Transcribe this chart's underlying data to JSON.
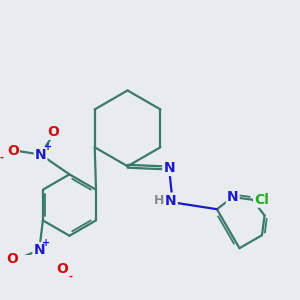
{
  "bg_color": "#e8ecf0",
  "bond_color": "#3a7a6a",
  "bond_lw": 1.6,
  "atom_colors": {
    "N": "#1a1acc",
    "O": "#cc1010",
    "Cl": "#22aa22",
    "H": "#888888",
    "C": "#3a7a6a"
  },
  "font_size_atom": 10,
  "font_size_charge": 7
}
